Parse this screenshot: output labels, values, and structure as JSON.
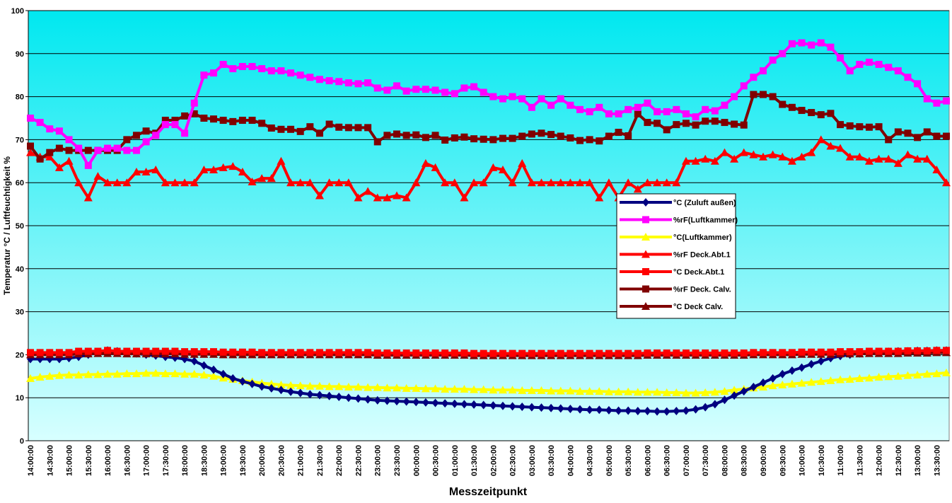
{
  "chart_data": {
    "type": "line",
    "y_label": "Temperatur °C / Luftfeuchtigkeit %",
    "x_label": "Messzeitpunkt",
    "ylim": [
      0,
      100
    ],
    "yticks": [
      0,
      10,
      20,
      30,
      40,
      50,
      60,
      70,
      80,
      90,
      100
    ],
    "grid": true,
    "legend": "center-right",
    "categories": [
      "14:00:00",
      null,
      "14:30:00",
      null,
      "15:00:00",
      null,
      "15:30:00",
      null,
      "16:00:00",
      null,
      "16:30:00",
      null,
      "17:00:00",
      null,
      "17:30:00",
      null,
      "18:00:00",
      null,
      "18:30:00",
      null,
      "19:00:00",
      null,
      "19:30:00",
      null,
      "20:00:00",
      null,
      "20:30:00",
      null,
      "21:00:00",
      null,
      "21:30:00",
      null,
      "22:00:00",
      null,
      "22:30:00",
      null,
      "23:00:00",
      null,
      "23:30:00",
      null,
      "00:00:00",
      null,
      "00:30:00",
      null,
      "01:00:00",
      null,
      "01:30:00",
      null,
      "02:00:00",
      null,
      "02:30:00",
      null,
      "03:00:00",
      null,
      "03:30:00",
      null,
      "04:00:00",
      null,
      "04:30:00",
      null,
      "05:00:00",
      null,
      "05:30:00",
      null,
      "06:00:00",
      null,
      "06:30:00",
      null,
      "07:00:00",
      null,
      "07:30:00",
      null,
      "08:00:00",
      null,
      "08:30:00",
      null,
      "09:00:00",
      null,
      "09:30:00",
      null,
      "10:00:00",
      null,
      "10:30:00",
      null,
      "11:00:00",
      null,
      "11:30:00",
      null,
      "12:00:00",
      null,
      "12:30:00",
      null,
      "13:00:00",
      null,
      "13:30:00",
      null
    ],
    "series": [
      {
        "name": "°C (Zuluft außen)",
        "color": "#000080",
        "marker": "diamond",
        "values": [
          19,
          19,
          19,
          19,
          19.2,
          19.5,
          20,
          20.5,
          21,
          20.8,
          20.5,
          20.3,
          20,
          19.8,
          19.5,
          19.3,
          19,
          18.5,
          17.5,
          16.5,
          15.5,
          14.5,
          13.8,
          13.2,
          12.6,
          12.2,
          11.8,
          11.4,
          11.1,
          10.8,
          10.6,
          10.4,
          10.2,
          10,
          9.8,
          9.6,
          9.4,
          9.3,
          9.2,
          9.1,
          9,
          8.9,
          8.8,
          8.7,
          8.6,
          8.5,
          8.4,
          8.3,
          8.2,
          8.1,
          8,
          7.9,
          7.8,
          7.7,
          7.6,
          7.5,
          7.4,
          7.3,
          7.2,
          7.2,
          7.1,
          7,
          7,
          6.9,
          6.9,
          6.8,
          6.8,
          6.9,
          7,
          7.3,
          7.8,
          8.5,
          9.5,
          10.5,
          11.5,
          12.5,
          13.5,
          14.5,
          15.5,
          16.3,
          17,
          17.8,
          18.5,
          19.2,
          19.7,
          20,
          20.3,
          20.5,
          20.6,
          20.7,
          20.8,
          20.8,
          20.9,
          20.9,
          21,
          21
        ]
      },
      {
        "name": "%rF(Luftkammer)",
        "color": "#ff00ff",
        "marker": "square",
        "values": [
          75,
          74,
          72.5,
          72,
          70,
          68,
          64,
          67.5,
          68,
          68,
          67.5,
          67.5,
          69.5,
          71,
          73.5,
          73.5,
          71.5,
          78.5,
          85,
          85.5,
          87.5,
          86.5,
          87,
          87,
          86.5,
          86,
          86,
          85.5,
          85,
          84.5,
          84,
          83.7,
          83.5,
          83.2,
          83,
          83.2,
          82,
          81.5,
          82.5,
          81.3,
          81.7,
          81.7,
          81.5,
          81,
          80.7,
          82,
          82.3,
          81,
          80,
          79.5,
          80,
          79.5,
          77.5,
          79.5,
          78,
          79.5,
          78,
          77,
          76.5,
          77.5,
          76,
          76,
          77,
          77.5,
          78.5,
          76.5,
          76.5,
          77,
          76,
          75.3,
          77,
          76.7,
          78,
          80,
          82.5,
          84.5,
          86,
          88.5,
          90,
          92.3,
          92.5,
          92,
          92.5,
          91.5,
          89,
          86,
          87.5,
          88,
          87.5,
          86.8,
          86,
          84.5,
          83,
          79.5,
          78.5,
          79
        ]
      },
      {
        "name": "°C(Luftkammer)",
        "color": "#ffff00",
        "marker": "triangle",
        "values": [
          14.5,
          14.8,
          15,
          15.2,
          15.3,
          15.3,
          15.4,
          15.4,
          15.5,
          15.5,
          15.6,
          15.6,
          15.7,
          15.7,
          15.6,
          15.6,
          15.5,
          15.5,
          15.3,
          15,
          14.6,
          14.3,
          14,
          13.7,
          13.4,
          13.2,
          13,
          12.9,
          12.8,
          12.7,
          12.7,
          12.6,
          12.6,
          12.5,
          12.5,
          12.4,
          12.4,
          12.3,
          12.3,
          12.2,
          12.2,
          12.1,
          12.1,
          12,
          12,
          12,
          11.9,
          11.9,
          11.8,
          11.8,
          11.8,
          11.7,
          11.7,
          11.7,
          11.6,
          11.6,
          11.6,
          11.5,
          11.5,
          11.5,
          11.4,
          11.4,
          11.4,
          11.3,
          11.3,
          11.3,
          11.2,
          11.2,
          11.1,
          11.1,
          11.2,
          11.3,
          11.5,
          11.8,
          12,
          12.3,
          12.5,
          12.8,
          13,
          13.2,
          13.4,
          13.6,
          13.8,
          14,
          14.2,
          14.3,
          14.5,
          14.6,
          14.8,
          14.9,
          15,
          15.2,
          15.3,
          15.5,
          15.6,
          15.8
        ]
      },
      {
        "name": "%rF Deck.Abt.1",
        "color": "#ff0000",
        "marker": "triangle",
        "values": [
          67,
          66,
          66,
          63.5,
          65,
          60,
          56.5,
          61.5,
          60,
          60,
          60,
          62.5,
          62.5,
          63,
          60,
          60,
          60,
          60,
          63,
          63,
          63.5,
          63.8,
          62.5,
          60.2,
          61,
          61,
          65,
          60,
          60,
          60,
          57,
          60,
          60,
          60,
          56.5,
          58,
          56.5,
          56.5,
          57,
          56.5,
          60,
          64.5,
          63.5,
          60,
          60,
          56.5,
          60,
          60,
          63.5,
          63,
          60,
          64.5,
          60,
          60,
          60,
          60,
          60,
          60,
          60,
          56.5,
          60,
          56.5,
          60,
          58.5,
          60,
          60,
          60,
          60,
          65,
          65,
          65.5,
          65,
          67,
          65.5,
          67,
          66.5,
          66,
          66.5,
          66,
          65,
          66,
          67,
          70,
          68.5,
          68,
          66,
          66,
          65,
          65.5,
          65.5,
          64.5,
          66.5,
          65.5,
          65.5,
          63,
          60
        ]
      },
      {
        "name": "°C Deck.Abt.1",
        "color": "#ff0000",
        "marker": "square",
        "values": [
          20.5,
          20.5,
          20.5,
          20.5,
          20.5,
          20.8,
          20.8,
          20.8,
          21,
          20.8,
          20.8,
          20.8,
          20.8,
          20.8,
          20.8,
          20.8,
          20.7,
          20.7,
          20.7,
          20.7,
          20.6,
          20.6,
          20.6,
          20.6,
          20.5,
          20.5,
          20.5,
          20.5,
          20.5,
          20.5,
          20.5,
          20.5,
          20.5,
          20.5,
          20.5,
          20.5,
          20.4,
          20.4,
          20.4,
          20.4,
          20.4,
          20.4,
          20.4,
          20.4,
          20.4,
          20.4,
          20.3,
          20.3,
          20.3,
          20.3,
          20.3,
          20.3,
          20.3,
          20.3,
          20.3,
          20.3,
          20.3,
          20.3,
          20.3,
          20.3,
          20.3,
          20.3,
          20.3,
          20.3,
          20.4,
          20.4,
          20.4,
          20.4,
          20.4,
          20.4,
          20.4,
          20.4,
          20.4,
          20.4,
          20.4,
          20.5,
          20.5,
          20.5,
          20.5,
          20.5,
          20.6,
          20.6,
          20.6,
          20.6,
          20.7,
          20.7,
          20.7,
          20.8,
          20.8,
          20.8,
          20.8,
          20.9,
          20.9,
          20.9,
          21,
          21
        ]
      },
      {
        "name": "%rF Deck. Calv.",
        "color": "#800000",
        "marker": "square",
        "values": [
          68.5,
          65.5,
          67,
          68,
          67.5,
          67.5,
          67.5,
          67.5,
          67.5,
          67.5,
          70,
          71,
          72,
          71.5,
          74.5,
          74.5,
          75.5,
          76,
          75,
          74.8,
          74.5,
          74.2,
          74.5,
          74.5,
          73.8,
          72.7,
          72.4,
          72.4,
          71.9,
          73,
          71.5,
          73.6,
          72.9,
          72.8,
          72.8,
          72.8,
          69.5,
          71,
          71.3,
          71,
          71.1,
          70.5,
          71,
          69.9,
          70.4,
          70.6,
          70.2,
          70.1,
          70,
          70.3,
          70.3,
          70.8,
          71.3,
          71.5,
          71.2,
          70.8,
          70.4,
          69.8,
          70,
          69.7,
          70.8,
          71.7,
          70.9,
          76,
          74,
          73.8,
          72.3,
          73.5,
          73.8,
          73.4,
          74.3,
          74.3,
          74,
          73.6,
          73.4,
          80.5,
          80.5,
          80,
          78.2,
          77.5,
          76.8,
          76.3,
          75.8,
          76.1,
          73.5,
          73.2,
          73,
          72.9,
          73,
          70,
          71.8,
          71.5,
          70.5,
          71.8,
          70.8,
          70.8
        ]
      },
      {
        "name": "°C Deck Calv.",
        "color": "#800000",
        "marker": "triangle",
        "values": [
          20,
          20,
          20,
          20,
          20,
          20.2,
          20.2,
          20.3,
          20.3,
          20.3,
          20.2,
          20.2,
          20.2,
          20.2,
          20.2,
          20.2,
          20.1,
          20.1,
          20.1,
          20.1,
          20,
          20,
          20,
          20,
          20,
          20,
          20,
          20,
          20,
          20,
          20,
          20,
          20,
          20,
          20,
          20,
          19.9,
          19.9,
          19.9,
          19.9,
          19.9,
          19.9,
          19.9,
          19.9,
          19.9,
          19.9,
          19.8,
          19.8,
          19.8,
          19.8,
          19.8,
          19.8,
          19.8,
          19.8,
          19.8,
          19.8,
          19.8,
          19.8,
          19.8,
          19.8,
          19.8,
          19.8,
          19.8,
          19.8,
          19.9,
          19.9,
          19.9,
          19.9,
          19.9,
          19.9,
          19.9,
          19.9,
          19.9,
          19.9,
          19.9,
          20,
          20,
          20,
          20,
          20,
          20.1,
          20.1,
          20.1,
          20.1,
          20.2,
          20.2,
          20.2,
          20.3,
          20.3,
          20.3,
          20.3,
          20.4,
          20.4,
          20.4,
          20.5,
          20.5
        ]
      }
    ]
  }
}
